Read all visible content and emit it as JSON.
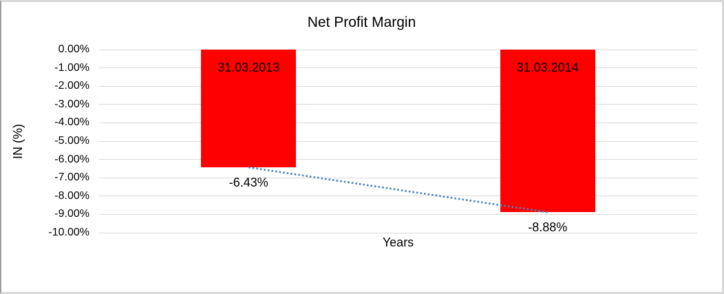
{
  "chart_data": {
    "type": "bar",
    "title": "Net Profit Margin",
    "xlabel": "Years",
    "ylabel": "IN (%)",
    "categories": [
      "31.03.2013",
      "31.03.2014"
    ],
    "values": [
      -6.43,
      -8.88
    ],
    "value_labels": [
      "-6.43%",
      "-8.88%"
    ],
    "ylim": [
      -10,
      0
    ],
    "ytick_values": [
      0,
      -1,
      -2,
      -3,
      -4,
      -5,
      -6,
      -7,
      -8,
      -9,
      -10
    ],
    "ytick_labels": [
      "0.00%",
      "-1.00%",
      "-2.00%",
      "-3.00%",
      "-4.00%",
      "-5.00%",
      "-6.00%",
      "-7.00%",
      "-8.00%",
      "-9.00%",
      "-10.00%"
    ],
    "grid": true,
    "legend": "none",
    "bar_color": "#FF0000",
    "gridline_color": "#D9D9D9",
    "trendline": {
      "type": "linear",
      "style": "dotted",
      "color": "#4E81BD",
      "from_value": -6.43,
      "to_value": -8.88
    },
    "category_label_position": "inside-top",
    "value_label_position": "below-bar"
  }
}
